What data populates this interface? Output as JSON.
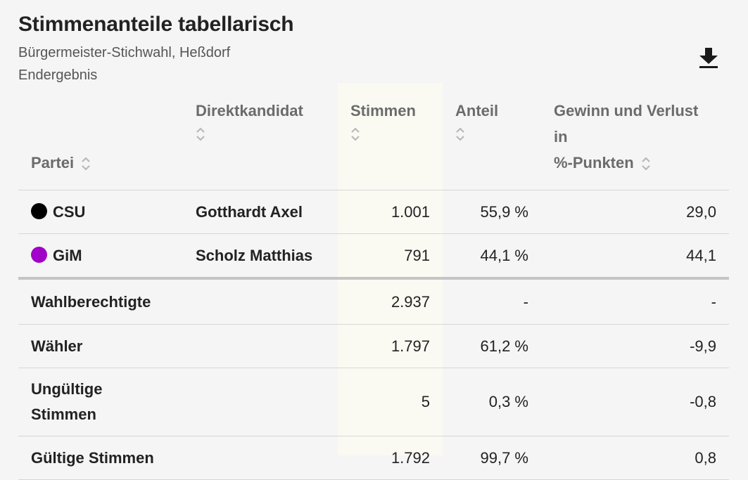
{
  "header": {
    "title": "Stimmenanteile tabellarisch",
    "subtitle": "Bürgermeister-Stichwahl, Heßdorf",
    "status": "Endergebnis"
  },
  "download_icon": "download-icon",
  "columns": {
    "partei": "Partei",
    "direktkandidat": "Direktkandidat",
    "stimmen": "Stimmen",
    "anteil": "Anteil",
    "gewinn_line1": "Gewinn und Verlust in",
    "gewinn_line2": "%-Punkten"
  },
  "parties": [
    {
      "party": "CSU",
      "color": "#000000",
      "candidate": "Gotthardt Axel",
      "votes": "1.001",
      "share": "55,9 %",
      "change": "29,0"
    },
    {
      "party": "GiM",
      "color": "#a000c8",
      "candidate": "Scholz Matthias",
      "votes": "791",
      "share": "44,1 %",
      "change": "44,1"
    }
  ],
  "summary": [
    {
      "label": "Wahlberechtigte",
      "votes": "2.937",
      "share": "-",
      "change": "-"
    },
    {
      "label": "Wähler",
      "votes": "1.797",
      "share": "61,2 %",
      "change": "-9,9"
    },
    {
      "label_line1": "Ungültige",
      "label_line2": "Stimmen",
      "votes": "5",
      "share": "0,3 %",
      "change": "-0,8"
    },
    {
      "label": "Gültige Stimmen",
      "votes": "1.792",
      "share": "99,7 %",
      "change": "0,8"
    }
  ]
}
